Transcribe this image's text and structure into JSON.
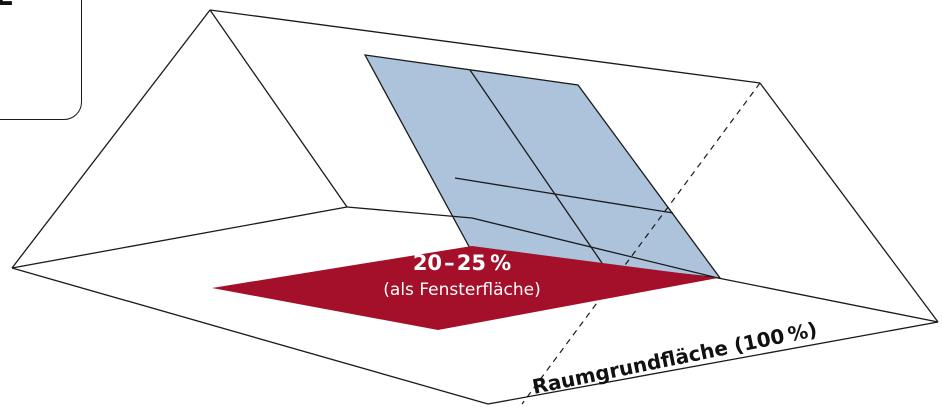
{
  "corner_label": {
    "text": "HE"
  },
  "window_share": {
    "value": "20 – 25 %",
    "caption": "(als Fensterfläche)"
  },
  "floor_area": {
    "label": "Raumgrundfläche (100 %)"
  },
  "colors": {
    "window_fill": "#adc3dc",
    "window_share_fill": "#a4102a",
    "lines": "#1a1a1a",
    "background": "#ffffff"
  }
}
